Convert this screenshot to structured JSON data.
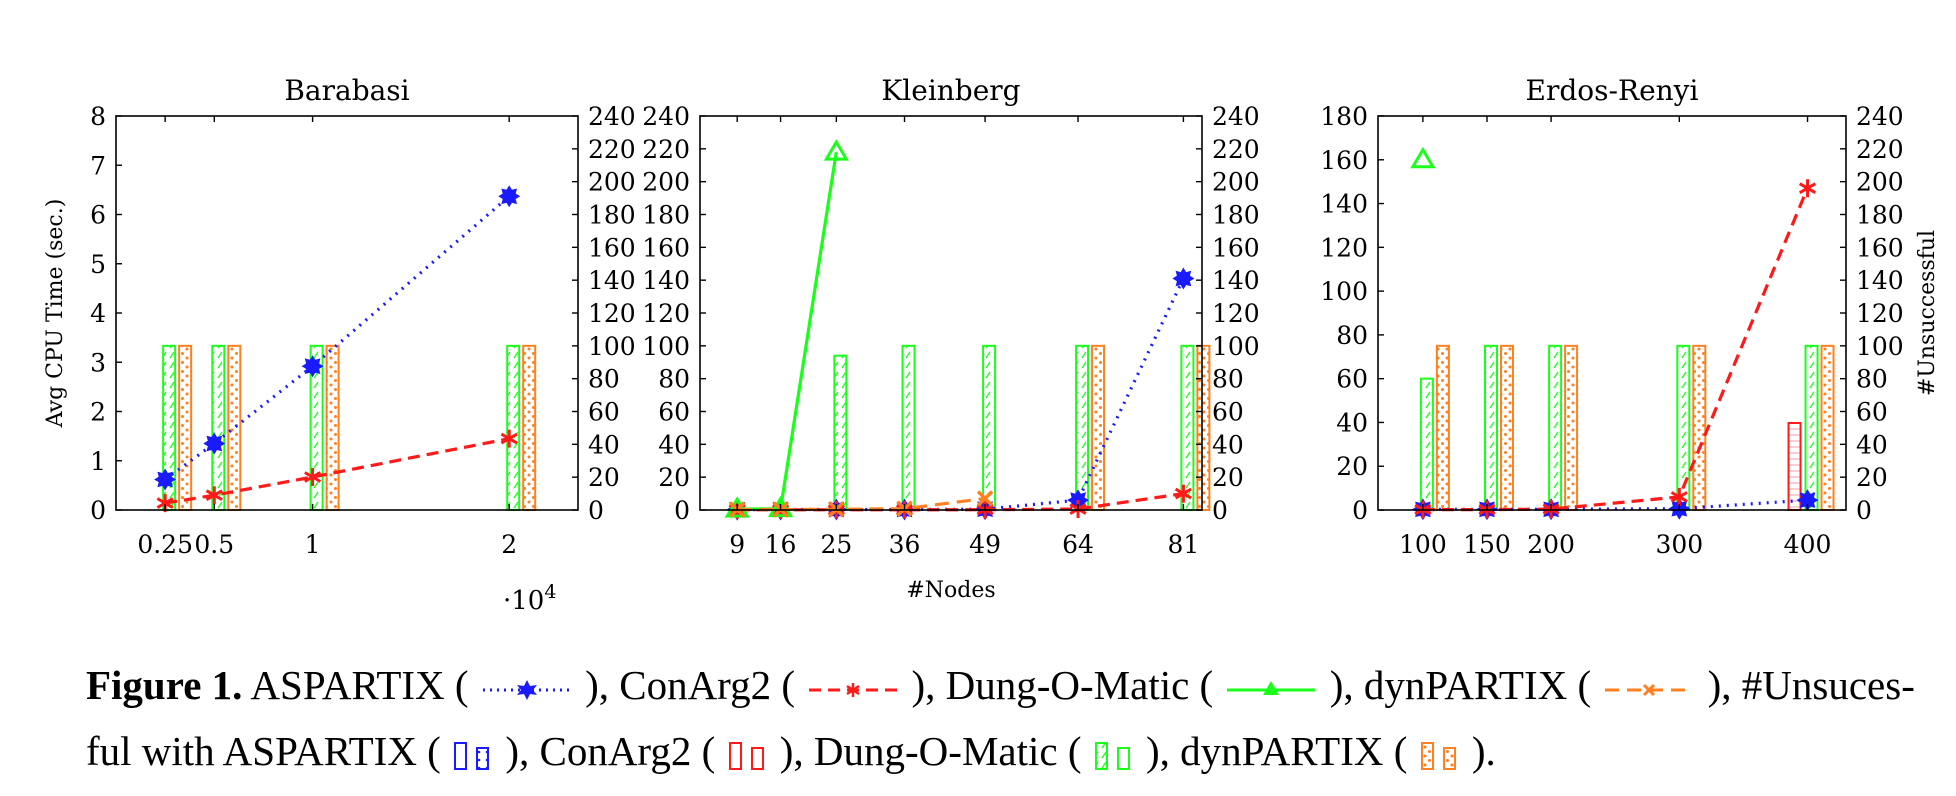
{
  "colors": {
    "aspartix": "#1a1aff",
    "conarg2": "#ff1a1a",
    "dungomatic": "#1aff1a",
    "dynpartix": "#ff8020"
  },
  "chart_data": [
    {
      "type": "bar+line",
      "title": "Barabasi",
      "ylabel": "Avg CPU Time (sec.)",
      "y2label": "",
      "xlabel": "",
      "x_multiplier": "·10",
      "x_multiplier_exp": "4",
      "x": [
        0.25,
        0.5,
        1,
        2
      ],
      "xticklabels": [
        "0.25",
        "0.5",
        "1",
        "2"
      ],
      "xlim": [
        0,
        2.35
      ],
      "ylim": [
        0,
        8
      ],
      "yticks": [
        0,
        1,
        2,
        3,
        4,
        5,
        6,
        7,
        8
      ],
      "y2lim": [
        0,
        240
      ],
      "y2ticks": [
        0,
        20,
        40,
        60,
        80,
        100,
        120,
        140,
        160,
        180,
        200,
        220,
        240
      ],
      "lines": [
        {
          "name": "ASPARTIX",
          "x": [
            0.25,
            0.5,
            1,
            2
          ],
          "y": [
            0.62,
            1.35,
            2.92,
            6.37
          ]
        },
        {
          "name": "ConArg2",
          "x": [
            0.25,
            0.5,
            1,
            2
          ],
          "y": [
            0.14,
            0.3,
            0.67,
            1.45
          ]
        }
      ],
      "bars": [
        {
          "name": "ASPARTIX",
          "values": [
            0,
            0,
            0,
            0
          ]
        },
        {
          "name": "ConArg2",
          "values": [
            0,
            0,
            0,
            0
          ]
        },
        {
          "name": "Dung-O-Matic",
          "values": [
            100,
            100,
            100,
            100
          ]
        },
        {
          "name": "dynPARTIX",
          "values": [
            100,
            100,
            100,
            100
          ]
        }
      ]
    },
    {
      "type": "bar+line",
      "title": "Kleinberg",
      "ylabel": "",
      "y2label": "",
      "xlabel": "#Nodes",
      "x": [
        9,
        16,
        25,
        36,
        49,
        64,
        81
      ],
      "xticklabels": [
        "9",
        "16",
        "25",
        "36",
        "49",
        "64",
        "81"
      ],
      "xlim": [
        3,
        84
      ],
      "ylim": [
        0,
        240
      ],
      "yticks": [
        0,
        20,
        40,
        60,
        80,
        100,
        120,
        140,
        160,
        180,
        200,
        220,
        240
      ],
      "y2lim": [
        0,
        240
      ],
      "y2ticks": [
        0,
        20,
        40,
        60,
        80,
        100,
        120,
        140,
        160,
        180,
        200,
        220,
        240
      ],
      "lines": [
        {
          "name": "ASPARTIX",
          "x": [
            9,
            16,
            25,
            36,
            49,
            64,
            81
          ],
          "y": [
            0.2,
            0.3,
            0.3,
            0.3,
            0.5,
            6,
            141
          ]
        },
        {
          "name": "ConArg2",
          "x": [
            9,
            16,
            25,
            36,
            49,
            64,
            81
          ],
          "y": [
            0.1,
            0.1,
            0.1,
            0.1,
            0.2,
            0.6,
            10
          ]
        },
        {
          "name": "Dung-O-Matic",
          "x": [
            9,
            16,
            25
          ],
          "y": [
            0.5,
            0.8,
            218
          ]
        },
        {
          "name": "dynPARTIX",
          "x": [
            9,
            16,
            25,
            36,
            49
          ],
          "y": [
            0.2,
            0.3,
            0.4,
            0.8,
            7
          ]
        }
      ],
      "bars": [
        {
          "name": "ASPARTIX",
          "values": [
            0,
            0,
            0,
            0,
            0,
            0,
            0
          ]
        },
        {
          "name": "ConArg2",
          "values": [
            0,
            0,
            0,
            0,
            0,
            0,
            0
          ]
        },
        {
          "name": "Dung-O-Matic",
          "values": [
            0,
            0,
            94,
            100,
            100,
            100,
            100
          ]
        },
        {
          "name": "dynPARTIX",
          "values": [
            0,
            0,
            0,
            0,
            0,
            100,
            100
          ]
        }
      ]
    },
    {
      "type": "bar+line",
      "title": "Erdos-Renyi",
      "ylabel": "",
      "y2label": "#Unsuccessful",
      "xlabel": "",
      "x": [
        100,
        150,
        200,
        300,
        400
      ],
      "xticklabels": [
        "100",
        "150",
        "200",
        "300",
        "400"
      ],
      "xlim": [
        65,
        430
      ],
      "ylim": [
        0,
        180
      ],
      "yticks": [
        0,
        20,
        40,
        60,
        80,
        100,
        120,
        140,
        160,
        180
      ],
      "y2lim": [
        0,
        240
      ],
      "y2ticks": [
        0,
        20,
        40,
        60,
        80,
        100,
        120,
        140,
        160,
        180,
        200,
        220,
        240
      ],
      "lines": [
        {
          "name": "ASPARTIX",
          "x": [
            100,
            150,
            200,
            300,
            400
          ],
          "y": [
            0.3,
            0.3,
            0.3,
            0.6,
            4.5
          ]
        },
        {
          "name": "ConArg2",
          "x": [
            100,
            150,
            200,
            300,
            400
          ],
          "y": [
            0.2,
            0.2,
            0.4,
            6,
            147
          ]
        },
        {
          "name": "Dung-O-Matic",
          "x": [
            100
          ],
          "y": [
            160
          ]
        }
      ],
      "bars": [
        {
          "name": "ASPARTIX",
          "values": [
            0,
            0,
            0,
            0,
            0
          ]
        },
        {
          "name": "ConArg2",
          "values": [
            0,
            0,
            0,
            0,
            53
          ]
        },
        {
          "name": "Dung-O-Matic",
          "values": [
            80,
            100,
            100,
            100,
            100
          ]
        },
        {
          "name": "dynPARTIX",
          "values": [
            100,
            100,
            100,
            100,
            100
          ]
        }
      ]
    }
  ],
  "caption": {
    "label": "Figure 1.",
    "p1": "ASPARTIX (",
    "p2": "), ConArg2 (",
    "p3": "), Dung-O-Matic (",
    "p4": "), dynPARTIX (",
    "p5": "), #Unsuces-",
    "p6": "ful with ASPARTIX (",
    "p7": "), ConArg2 (",
    "p8": "), Dung-O-Matic (",
    "p9": "), dynPARTIX (",
    "p10": ")."
  }
}
